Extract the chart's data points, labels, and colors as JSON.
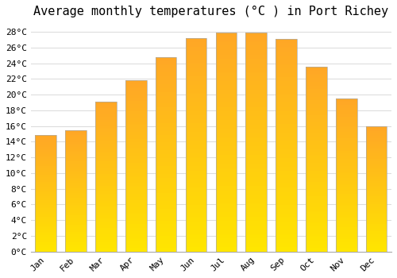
{
  "title": "Average monthly temperatures (°C ) in Port Richey",
  "months": [
    "Jan",
    "Feb",
    "Mar",
    "Apr",
    "May",
    "Jun",
    "Jul",
    "Aug",
    "Sep",
    "Oct",
    "Nov",
    "Dec"
  ],
  "values": [
    14.8,
    15.5,
    19.1,
    21.8,
    24.8,
    27.2,
    27.9,
    27.9,
    27.1,
    23.5,
    19.5,
    16.0
  ],
  "bar_color_bottom": "#FFB300",
  "bar_color_top": "#FFD966",
  "bar_color_mid": "#FFC830",
  "bar_edge_color": "#AAAAAA",
  "background_color": "#FFFFFF",
  "plot_bg_color": "#FFFFFF",
  "grid_color": "#DDDDDD",
  "title_fontsize": 11,
  "tick_fontsize": 8,
  "ylim": [
    0,
    29
  ],
  "yticks": [
    0,
    2,
    4,
    6,
    8,
    10,
    12,
    14,
    16,
    18,
    20,
    22,
    24,
    26,
    28
  ]
}
